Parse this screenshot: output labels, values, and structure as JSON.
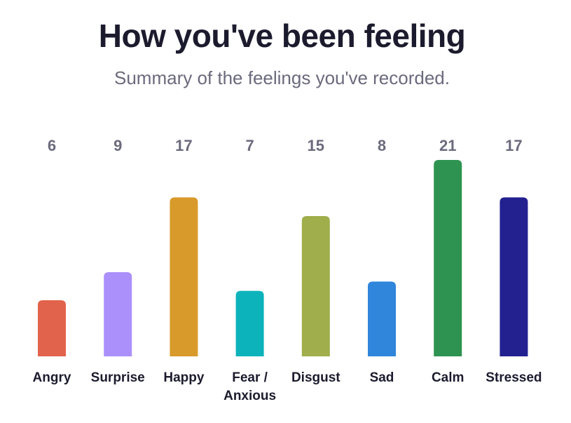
{
  "header": {
    "title": "How you've been feeling",
    "subtitle": "Summary of the feelings you've recorded."
  },
  "chart_data": {
    "type": "bar",
    "title": "How you've been feeling",
    "subtitle": "Summary of the feelings you've recorded.",
    "categories": [
      "Angry",
      "Surprise",
      "Happy",
      "Fear / Anxious",
      "Disgust",
      "Sad",
      "Calm",
      "Stressed"
    ],
    "category_lines": [
      [
        "Angry"
      ],
      [
        "Surprise"
      ],
      [
        "Happy"
      ],
      [
        "Fear /",
        "Anxious"
      ],
      [
        "Disgust"
      ],
      [
        "Sad"
      ],
      [
        "Calm"
      ],
      [
        "Stressed"
      ]
    ],
    "values": [
      6,
      9,
      17,
      7,
      15,
      8,
      21,
      17
    ],
    "colors": [
      "#e2634b",
      "#ab8ffb",
      "#d89a2b",
      "#0cb3bb",
      "#a0ae4b",
      "#2f86db",
      "#2e9350",
      "#23218f"
    ],
    "xlabel": "",
    "ylabel": "",
    "ylim": [
      0,
      21
    ],
    "grid": false,
    "legend": "none"
  }
}
